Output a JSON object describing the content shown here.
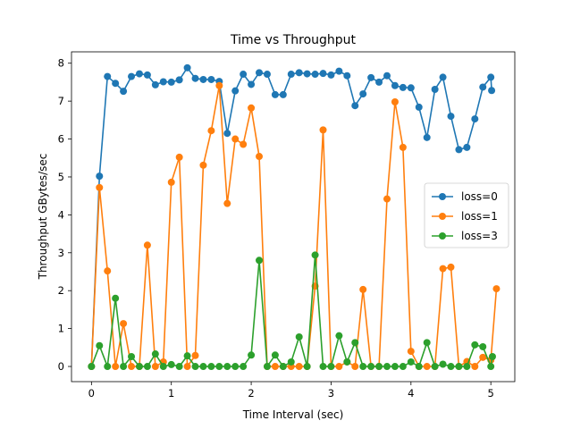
{
  "chart_data": {
    "type": "line",
    "title": "Time vs Throughput",
    "xlabel": "Time Interval (sec)",
    "ylabel": "Throughput GBytes/sec",
    "xlim": [
      -0.25,
      5.3
    ],
    "ylim": [
      -0.4,
      8.3
    ],
    "xticks": [
      0,
      1,
      2,
      3,
      4,
      5
    ],
    "yticks": [
      0,
      1,
      2,
      3,
      4,
      5,
      6,
      7,
      8
    ],
    "grid": false,
    "legend_position": "center-right",
    "series": [
      {
        "name": "loss=0",
        "color": "#1f77b4",
        "x": [
          0,
          0.1,
          0.2,
          0.3,
          0.4,
          0.5,
          0.6,
          0.7,
          0.8,
          0.9,
          1.0,
          1.1,
          1.2,
          1.3,
          1.4,
          1.5,
          1.6,
          1.7,
          1.8,
          1.9,
          2.0,
          2.1,
          2.2,
          2.3,
          2.4,
          2.5,
          2.6,
          2.7,
          2.8,
          2.9,
          3.0,
          3.1,
          3.2,
          3.3,
          3.4,
          3.5,
          3.6,
          3.7,
          3.8,
          3.9,
          4.0,
          4.1,
          4.2,
          4.3,
          4.4,
          4.5,
          4.6,
          4.7,
          4.8,
          4.9,
          5.0,
          5.01
        ],
        "values": [
          0,
          5.02,
          7.65,
          7.47,
          7.26,
          7.65,
          7.72,
          7.69,
          7.43,
          7.51,
          7.5,
          7.56,
          7.88,
          7.6,
          7.57,
          7.57,
          7.52,
          6.15,
          7.27,
          7.71,
          7.44,
          7.75,
          7.71,
          7.17,
          7.17,
          7.71,
          7.75,
          7.72,
          7.71,
          7.73,
          7.69,
          7.79,
          7.67,
          6.88,
          7.19,
          7.62,
          7.5,
          7.67,
          7.41,
          7.36,
          7.35,
          6.84,
          6.04,
          7.31,
          7.63,
          6.6,
          5.72,
          5.78,
          6.53,
          7.37,
          7.63,
          7.28
        ]
      },
      {
        "name": "loss=1",
        "color": "#ff7f0e",
        "x": [
          0,
          0.1,
          0.2,
          0.3,
          0.4,
          0.5,
          0.6,
          0.7,
          0.8,
          0.9,
          1.0,
          1.1,
          1.2,
          1.3,
          1.4,
          1.5,
          1.6,
          1.7,
          1.8,
          1.9,
          2.0,
          2.1,
          2.2,
          2.3,
          2.4,
          2.5,
          2.6,
          2.7,
          2.8,
          2.9,
          3.0,
          3.1,
          3.2,
          3.3,
          3.4,
          3.5,
          3.6,
          3.7,
          3.8,
          3.9,
          4.0,
          4.1,
          4.2,
          4.3,
          4.4,
          4.5,
          4.6,
          4.7,
          4.8,
          4.9,
          5.0,
          5.07
        ],
        "values": [
          0,
          4.72,
          2.52,
          0,
          1.13,
          0,
          0,
          3.2,
          0,
          0.12,
          4.86,
          5.52,
          0,
          0.29,
          5.31,
          6.22,
          7.41,
          4.3,
          6.0,
          5.86,
          6.82,
          5.54,
          0,
          0,
          0,
          0,
          0,
          0,
          2.12,
          6.24,
          0,
          0,
          0.12,
          0,
          2.03,
          0,
          0,
          4.42,
          6.98,
          5.78,
          0.4,
          0,
          0,
          0,
          2.58,
          2.62,
          0,
          0.13,
          0,
          0.24,
          0.17,
          2.05
        ]
      },
      {
        "name": "loss=3",
        "color": "#2ca02c",
        "x": [
          0,
          0.1,
          0.2,
          0.3,
          0.4,
          0.5,
          0.6,
          0.7,
          0.8,
          0.9,
          1.0,
          1.1,
          1.2,
          1.3,
          1.4,
          1.5,
          1.6,
          1.7,
          1.8,
          1.9,
          2.0,
          2.1,
          2.2,
          2.3,
          2.4,
          2.5,
          2.6,
          2.7,
          2.8,
          2.9,
          3.0,
          3.1,
          3.2,
          3.3,
          3.4,
          3.5,
          3.6,
          3.7,
          3.8,
          3.9,
          4.0,
          4.1,
          4.2,
          4.3,
          4.4,
          4.5,
          4.6,
          4.7,
          4.8,
          4.9,
          5.0,
          5.02
        ],
        "values": [
          0,
          0.55,
          0,
          1.8,
          0,
          0.26,
          0,
          0,
          0.33,
          0,
          0.05,
          0,
          0.28,
          0,
          0,
          0,
          0,
          0,
          0,
          0,
          0.3,
          2.8,
          0,
          0.3,
          0,
          0.12,
          0.78,
          0,
          2.94,
          0,
          0,
          0.81,
          0.12,
          0.63,
          0,
          0,
          0,
          0,
          0,
          0,
          0.12,
          0,
          0.63,
          0,
          0.06,
          0,
          0,
          0,
          0.57,
          0.52,
          0,
          0.26
        ]
      }
    ]
  }
}
